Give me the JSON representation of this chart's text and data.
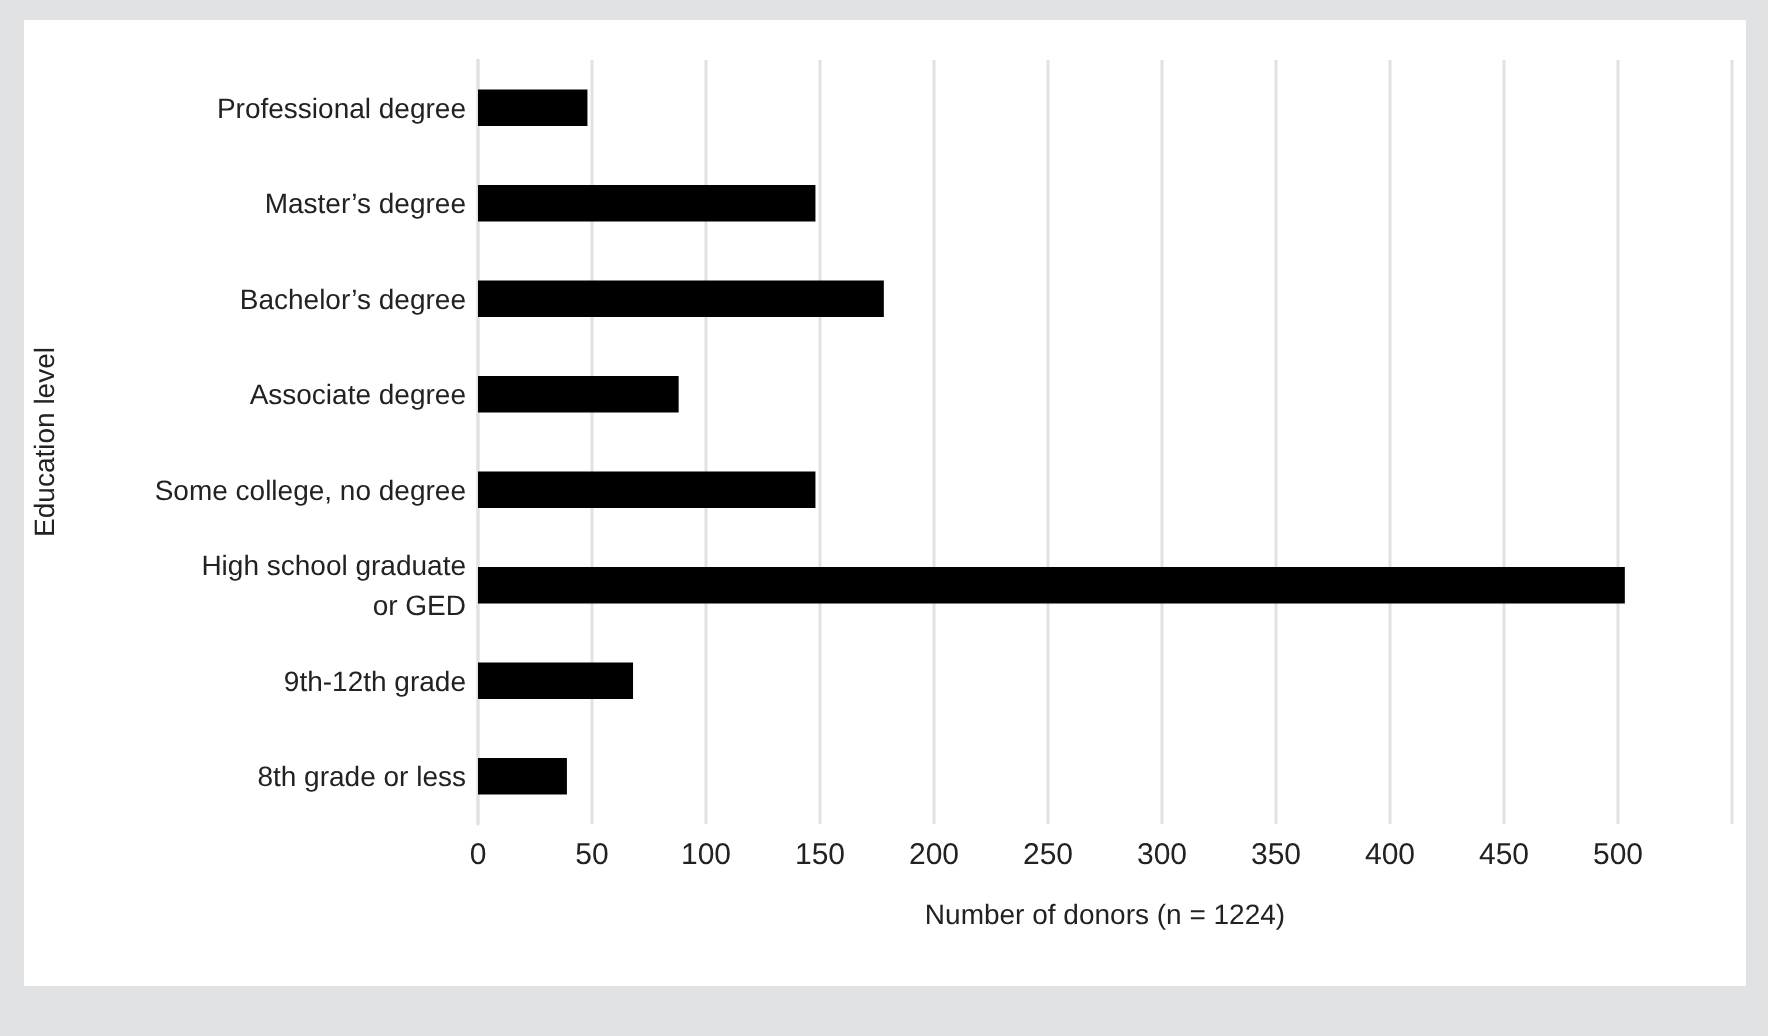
{
  "chart_data": {
    "type": "bar",
    "orientation": "horizontal",
    "xlabel": "Number of donors (n = 1224)",
    "ylabel": "Education level",
    "categories": [
      "Professional degree",
      "Master’s degree",
      "Bachelor’s degree",
      "Associate degree",
      "Some college, no degree",
      "High school graduate\nor GED",
      "9th-12th grade",
      "8th grade or less"
    ],
    "values": [
      48,
      148,
      178,
      88,
      148,
      503,
      68,
      39
    ],
    "color": "#000000",
    "xlim": [
      0,
      550
    ],
    "xticks": [
      0,
      50,
      100,
      150,
      200,
      250,
      300,
      350,
      400,
      450,
      500,
      {
        "value": 550,
        "label": null
      }
    ],
    "grid": "x"
  }
}
